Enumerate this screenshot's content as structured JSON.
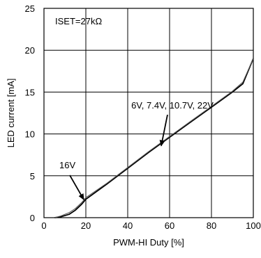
{
  "chart_data": {
    "type": "line",
    "title": "",
    "xlabel": "PWM-HI Duty [%]",
    "ylabel": "LED current [mA]",
    "xlim": [
      0,
      100
    ],
    "ylim": [
      0,
      25
    ],
    "xticks": [
      0,
      20,
      40,
      60,
      80,
      100
    ],
    "yticks": [
      0,
      5,
      10,
      15,
      20,
      25
    ],
    "x_tick_labels": [
      "0",
      "20",
      "40",
      "60",
      "80",
      "100"
    ],
    "y_tick_labels": [
      "0",
      "5",
      "10",
      "15",
      "20",
      "25"
    ],
    "grid": true,
    "legend": "none",
    "series": [
      {
        "name": "6V, 7.4V, 10.7V, 22V",
        "x": [
          5,
          8,
          12,
          15,
          18,
          20,
          30,
          40,
          50,
          60,
          70,
          80,
          90,
          95,
          100
        ],
        "values": [
          0,
          0.1,
          0.4,
          0.9,
          1.6,
          2.2,
          4.0,
          5.9,
          7.8,
          9.6,
          11.4,
          13.2,
          15.0,
          16.0,
          19.0
        ]
      },
      {
        "name": "16V",
        "x": [
          5,
          8,
          12,
          15,
          18,
          20,
          30,
          40,
          50,
          60,
          70,
          80,
          90,
          95,
          100
        ],
        "values": [
          0,
          0.2,
          0.6,
          1.1,
          1.8,
          2.4,
          4.1,
          6.0,
          7.9,
          9.7,
          11.5,
          13.3,
          15.1,
          16.2,
          19.0
        ]
      }
    ],
    "annotations": [
      {
        "text": "ISET=27kΩ"
      },
      {
        "text": "6V, 7.4V, 10.7V, 22V",
        "target": [
          56,
          8.5
        ]
      },
      {
        "text": "16V",
        "target": [
          19,
          2.0
        ]
      }
    ]
  }
}
